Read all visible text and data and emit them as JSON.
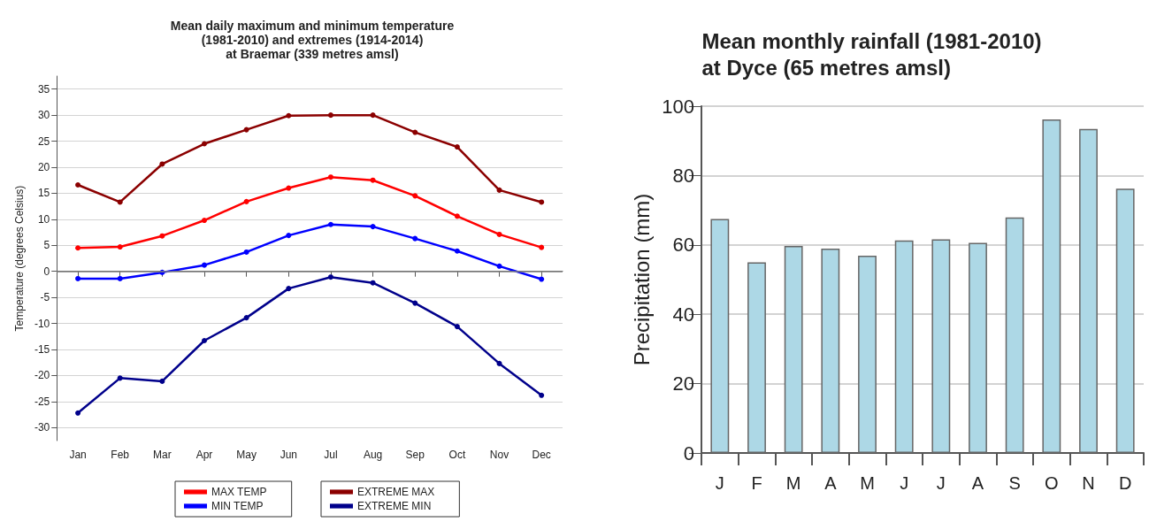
{
  "chart_data": [
    {
      "type": "line",
      "title": "Mean daily maximum and minimum temperature\n(1981-2010) and extremes (1914-2014)\nat Braemar (339 metres amsl)",
      "ylabel": "Temperature (degrees Celsius)",
      "categories": [
        "Jan",
        "Feb",
        "Mar",
        "Apr",
        "May",
        "Jun",
        "Jul",
        "Aug",
        "Sep",
        "Oct",
        "Nov",
        "Dec"
      ],
      "series": [
        {
          "name": "MAX TEMP",
          "color": "#ff0000",
          "values": [
            4.5,
            4.7,
            6.8,
            9.8,
            13.4,
            16.0,
            18.1,
            17.5,
            14.5,
            10.6,
            7.1,
            4.6
          ]
        },
        {
          "name": "MIN TEMP",
          "color": "#0000ff",
          "values": [
            -1.4,
            -1.4,
            -0.2,
            1.2,
            3.7,
            6.9,
            9.0,
            8.6,
            6.3,
            3.9,
            1.0,
            -1.5
          ]
        },
        {
          "name": "EXTREME MAX",
          "color": "#8b0000",
          "values": [
            16.6,
            13.3,
            20.6,
            24.5,
            27.2,
            29.9,
            30.0,
            30.0,
            26.7,
            23.9,
            15.6,
            13.3
          ]
        },
        {
          "name": "EXTREME MIN",
          "color": "#00008b",
          "values": [
            -27.2,
            -20.5,
            -21.1,
            -13.3,
            -8.9,
            -3.3,
            -1.1,
            -2.2,
            -6.1,
            -10.6,
            -17.7,
            -23.8
          ]
        }
      ],
      "ylim": [
        -32.5,
        37.5
      ],
      "yticks": [
        -30,
        -25,
        -20,
        -15,
        -10,
        -5,
        0,
        5,
        10,
        15,
        20,
        25,
        30,
        35
      ],
      "grid": "y",
      "legend": "bottom",
      "marker": "circle",
      "line_style": "solid",
      "ref_lines": [
        {
          "axis": "y",
          "value": 0,
          "color": "#808080"
        }
      ]
    },
    {
      "type": "bar",
      "title": "Mean monthly rainfall (1981-2010)\nat Dyce (65 metres amsl)",
      "ylabel": "Precipitation (mm)",
      "categories": [
        "J",
        "F",
        "M",
        "A",
        "M",
        "J",
        "J",
        "A",
        "S",
        "O",
        "N",
        "D"
      ],
      "values": [
        67.5,
        55.0,
        59.7,
        58.9,
        56.9,
        61.3,
        61.6,
        60.6,
        67.9,
        96.2,
        93.4,
        76.2
      ],
      "color": "#add8e6",
      "ylim": [
        0,
        100
      ],
      "yticks": [
        0,
        20,
        40,
        60,
        80,
        100
      ],
      "grid": "y",
      "legend": false
    }
  ]
}
